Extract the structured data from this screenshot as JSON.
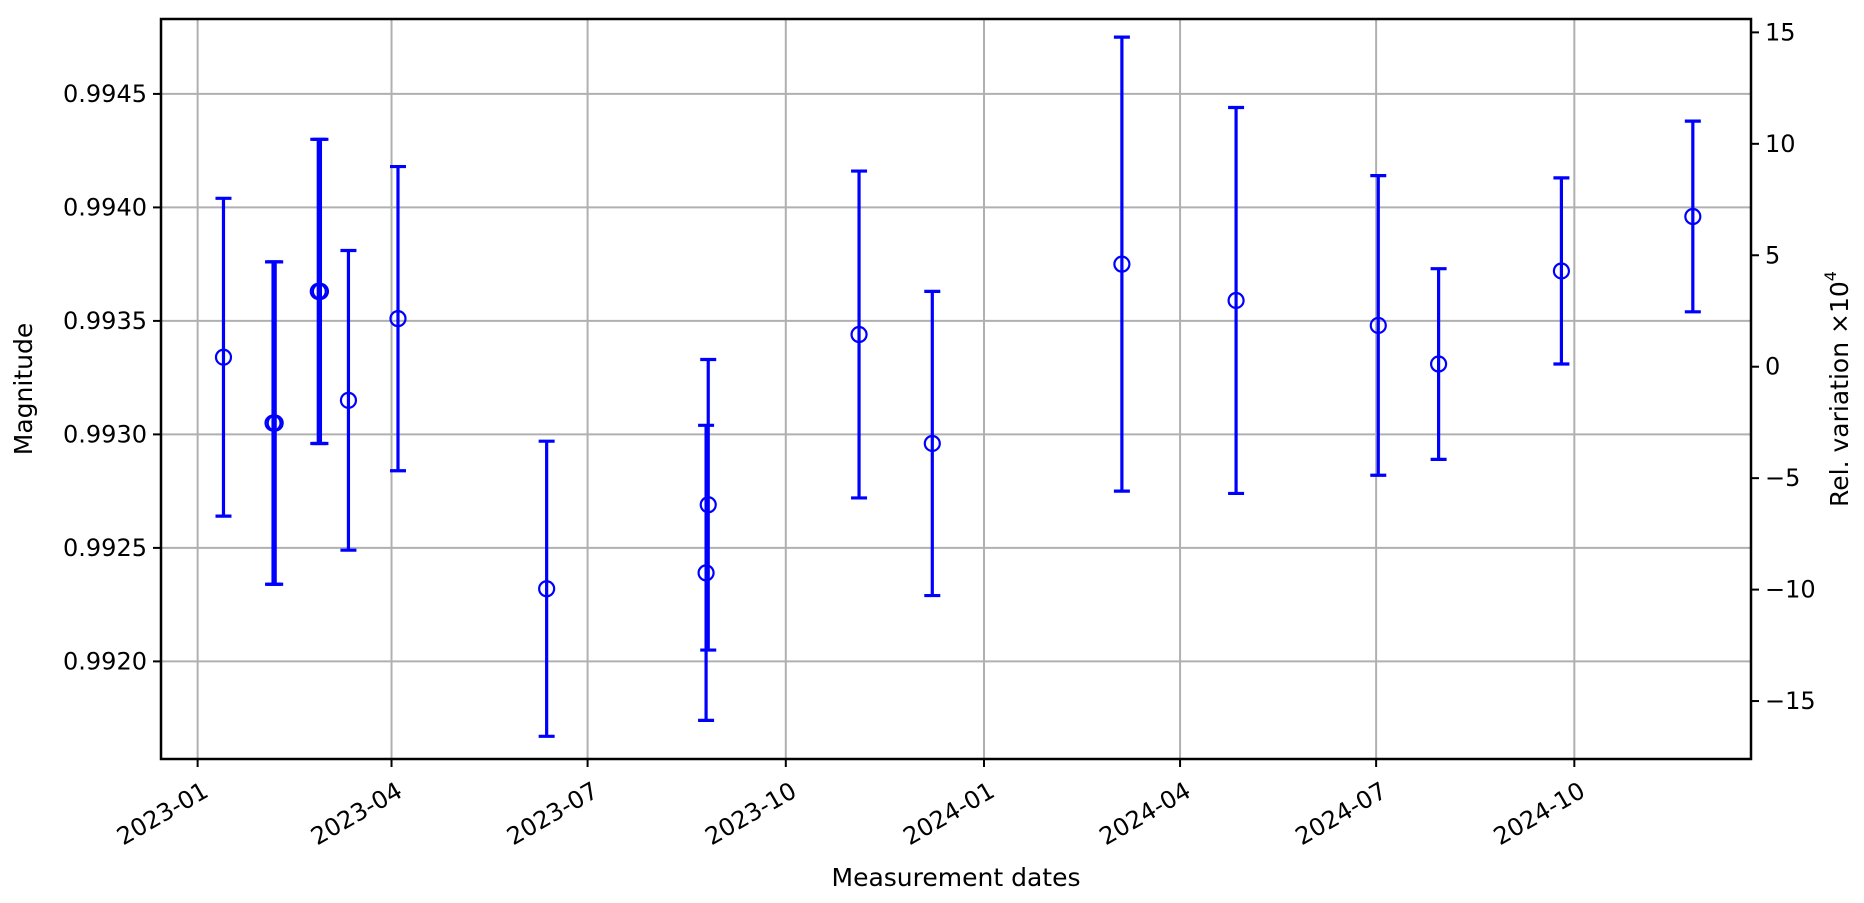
{
  "chart_data": {
    "type": "scatter",
    "title": "",
    "xlabel": "Measurement dates",
    "ylabel": "Magnitude",
    "ylabel_right": "Rel. variation ×10",
    "ylabel_right_exponent": "4",
    "ylim": [
      0.99157,
      0.99483
    ],
    "ylim_right": [
      -17.6,
      15.6
    ],
    "y_ticks": [
      0.992,
      0.9925,
      0.993,
      0.9935,
      0.994,
      0.9945
    ],
    "y_tick_labels": [
      "0.9920",
      "0.9925",
      "0.9930",
      "0.9935",
      "0.9940",
      "0.9945"
    ],
    "y_right_ticks": [
      -15,
      -10,
      -5,
      0,
      5,
      10,
      15
    ],
    "y_right_tick_labels": [
      "−15",
      "−10",
      "−5",
      "0",
      "5",
      "10",
      "15"
    ],
    "xlim": [
      "2022-12-15",
      "2024-12-22"
    ],
    "x_ticks": [
      "2023-01-01",
      "2023-04-01",
      "2023-07-01",
      "2023-10-01",
      "2024-01-01",
      "2024-04-01",
      "2024-07-01",
      "2024-10-01"
    ],
    "x_tick_labels": [
      "2023-01",
      "2023-04",
      "2023-07",
      "2023-10",
      "2024-01",
      "2024-04",
      "2024-07",
      "2024-10"
    ],
    "grid": true,
    "marker": "open circle",
    "color": "#0000ff",
    "points": [
      {
        "date": "2023-01-13",
        "y": 0.99334,
        "err": 0.0007
      },
      {
        "date": "2023-02-05",
        "y": 0.99305,
        "err": 0.00071
      },
      {
        "date": "2023-02-06",
        "y": 0.99305,
        "err": 0.00071
      },
      {
        "date": "2023-02-26",
        "y": 0.99363,
        "err": 0.00067
      },
      {
        "date": "2023-02-27",
        "y": 0.99363,
        "err": 0.00067
      },
      {
        "date": "2023-03-12",
        "y": 0.99315,
        "err": 0.00066
      },
      {
        "date": "2023-04-04",
        "y": 0.99351,
        "err": 0.00067
      },
      {
        "date": "2023-06-12",
        "y": 0.99232,
        "err": 0.00065
      },
      {
        "date": "2023-08-25",
        "y": 0.99239,
        "err": 0.00065
      },
      {
        "date": "2023-08-26",
        "y": 0.99269,
        "err": 0.00064
      },
      {
        "date": "2023-11-04",
        "y": 0.99344,
        "err": 0.00072
      },
      {
        "date": "2023-12-08",
        "y": 0.99296,
        "err": 0.00067
      },
      {
        "date": "2024-03-05",
        "y": 0.99375,
        "err": 0.001
      },
      {
        "date": "2024-04-27",
        "y": 0.99359,
        "err": 0.00085
      },
      {
        "date": "2024-07-02",
        "y": 0.99348,
        "err": 0.00066
      },
      {
        "date": "2024-07-30",
        "y": 0.99331,
        "err": 0.00042
      },
      {
        "date": "2024-09-25",
        "y": 0.99372,
        "err": 0.00041
      },
      {
        "date": "2024-11-25",
        "y": 0.99396,
        "err": 0.00042
      }
    ]
  }
}
